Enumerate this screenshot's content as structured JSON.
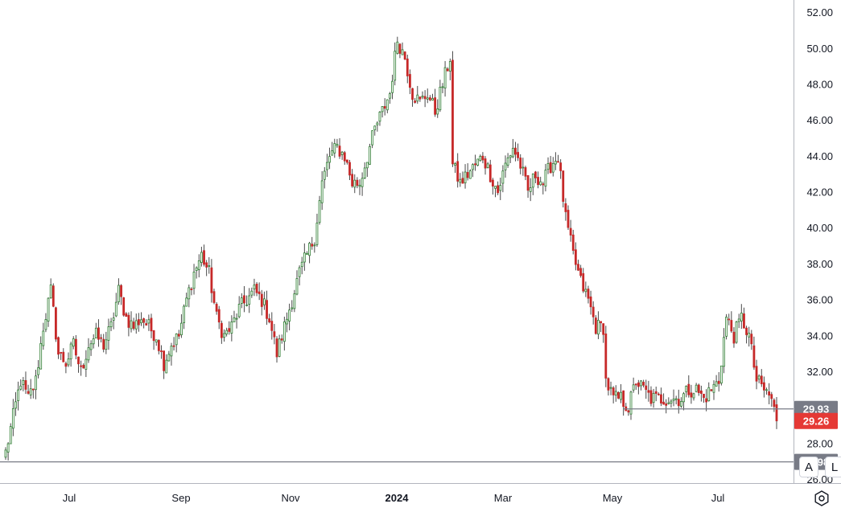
{
  "chart_data": {
    "type": "candlestick",
    "y_axis": {
      "ticks": [
        "52.00",
        "50.00",
        "48.00",
        "46.00",
        "44.00",
        "42.00",
        "40.00",
        "38.00",
        "36.00",
        "34.00",
        "32.00",
        "28.00",
        "26.00"
      ],
      "ylim": [
        25.8,
        52.7
      ],
      "position": "right"
    },
    "x_axis": {
      "ticks": [
        {
          "label": "Jul",
          "bold": false
        },
        {
          "label": "Sep",
          "bold": false
        },
        {
          "label": "Nov",
          "bold": false
        },
        {
          "label": "2024",
          "bold": true
        },
        {
          "label": "Mar",
          "bold": false
        },
        {
          "label": "May",
          "bold": false
        },
        {
          "label": "Jul",
          "bold": false
        }
      ]
    },
    "price_lines": [
      {
        "label": "29.93",
        "value": 29.93,
        "color": "#787b86"
      },
      {
        "label": "29.26",
        "value": 29.26,
        "color": "#e53935"
      },
      {
        "label": "26.98",
        "value": 26.98,
        "color": "#787b86"
      }
    ],
    "colors": {
      "up": "#2e7d32",
      "down": "#c62828",
      "wick": "#4a4a4a",
      "grid": "#e0e3eb",
      "axis_line": "#b2b5be"
    },
    "anchors": [
      [
        0,
        27.5
      ],
      [
        3,
        29.5
      ],
      [
        6,
        31.5
      ],
      [
        9,
        30.5
      ],
      [
        12,
        31.5
      ],
      [
        15,
        34.5
      ],
      [
        18,
        36.5
      ],
      [
        21,
        33.0
      ],
      [
        24,
        32.5
      ],
      [
        27,
        33.5
      ],
      [
        30,
        32.0
      ],
      [
        33,
        33.5
      ],
      [
        36,
        34.0
      ],
      [
        39,
        33.5
      ],
      [
        42,
        34.5
      ],
      [
        45,
        36.5
      ],
      [
        48,
        35.0
      ],
      [
        51,
        34.5
      ],
      [
        54,
        35.0
      ],
      [
        57,
        34.5
      ],
      [
        60,
        34.0
      ],
      [
        63,
        32.5
      ],
      [
        66,
        33.5
      ],
      [
        69,
        34.0
      ],
      [
        72,
        36.0
      ],
      [
        75,
        37.5
      ],
      [
        78,
        38.5
      ],
      [
        81,
        37.5
      ],
      [
        84,
        35.0
      ],
      [
        87,
        34.0
      ],
      [
        90,
        34.5
      ],
      [
        93,
        35.5
      ],
      [
        96,
        36.0
      ],
      [
        99,
        36.5
      ],
      [
        102,
        36.0
      ],
      [
        105,
        35.0
      ],
      [
        108,
        33.0
      ],
      [
        111,
        34.5
      ],
      [
        114,
        36.0
      ],
      [
        117,
        37.5
      ],
      [
        120,
        38.5
      ],
      [
        123,
        39.5
      ],
      [
        126,
        42.5
      ],
      [
        129,
        44.0
      ],
      [
        132,
        44.5
      ],
      [
        135,
        44.0
      ],
      [
        138,
        42.5
      ],
      [
        141,
        42.5
      ],
      [
        144,
        44.0
      ],
      [
        147,
        45.5
      ],
      [
        150,
        46.5
      ],
      [
        153,
        47.5
      ],
      [
        156,
        50.5
      ],
      [
        159,
        49.5
      ],
      [
        162,
        47.5
      ],
      [
        165,
        47.0
      ],
      [
        168,
        47.5
      ],
      [
        171,
        46.5
      ],
      [
        174,
        48.0
      ],
      [
        177,
        49.5
      ],
      [
        178,
        43.5
      ],
      [
        181,
        42.5
      ],
      [
        184,
        43.0
      ],
      [
        187,
        43.5
      ],
      [
        190,
        44.0
      ],
      [
        193,
        43.0
      ],
      [
        196,
        42.0
      ],
      [
        199,
        43.5
      ],
      [
        202,
        44.5
      ],
      [
        205,
        43.5
      ],
      [
        208,
        42.0
      ],
      [
        211,
        43.0
      ],
      [
        214,
        42.5
      ],
      [
        217,
        43.5
      ],
      [
        220,
        44.0
      ],
      [
        223,
        40.5
      ],
      [
        226,
        38.5
      ],
      [
        229,
        37.0
      ],
      [
        232,
        36.0
      ],
      [
        235,
        34.5
      ],
      [
        238,
        34.5
      ],
      [
        239,
        31.5
      ],
      [
        242,
        30.5
      ],
      [
        245,
        30.5
      ],
      [
        248,
        30.0
      ],
      [
        251,
        31.5
      ],
      [
        254,
        31.0
      ],
      [
        257,
        30.5
      ],
      [
        260,
        30.5
      ],
      [
        263,
        30.5
      ],
      [
        266,
        30.5
      ],
      [
        269,
        30.5
      ],
      [
        272,
        31.0
      ],
      [
        275,
        31.0
      ],
      [
        278,
        30.5
      ],
      [
        281,
        31.0
      ],
      [
        284,
        31.5
      ],
      [
        287,
        35.0
      ],
      [
        290,
        34.0
      ],
      [
        293,
        35.0
      ],
      [
        296,
        34.0
      ],
      [
        299,
        31.5
      ],
      [
        302,
        31.0
      ],
      [
        305,
        30.5
      ],
      [
        307,
        29.26
      ]
    ]
  }
}
